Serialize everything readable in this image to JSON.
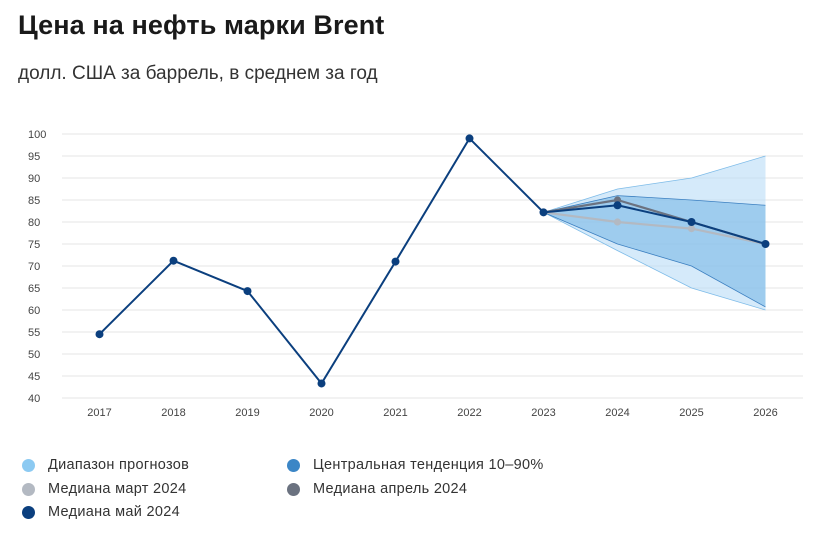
{
  "title": "Цена на нефть марки Brent",
  "subtitle": "долл. США за баррель, в среднем за год",
  "chart_data": {
    "type": "line",
    "ylim": [
      40,
      100
    ],
    "yticks": [
      100,
      95,
      90,
      85,
      80,
      75,
      70,
      65,
      60,
      55,
      50,
      45,
      40
    ],
    "categories": [
      "2017",
      "2018",
      "2019",
      "2020",
      "2021",
      "2022",
      "2023",
      "2024",
      "2025",
      "2026"
    ],
    "grid": true,
    "series": [
      {
        "name": "Медиана май 2024",
        "color": "#0b3f7e",
        "values": [
          54.5,
          71.2,
          64.3,
          43.3,
          71.0,
          99.0,
          82.2,
          83.8,
          80.0,
          75.0
        ]
      },
      {
        "name": "Медиана март 2024",
        "color": "#b3b9c2",
        "values": [
          null,
          null,
          null,
          null,
          null,
          null,
          82.2,
          80.0,
          78.5,
          75.0
        ]
      },
      {
        "name": "Медиана апрель 2024",
        "color": "#6b7280",
        "values": [
          null,
          null,
          null,
          null,
          null,
          null,
          82.2,
          85.0,
          80.0,
          75.0
        ]
      }
    ],
    "bands": [
      {
        "name": "Диапазон прогнозов",
        "color": "#b9dcf7",
        "x": [
          "2023",
          "2024",
          "2025",
          "2026"
        ],
        "low": [
          82.2,
          73.5,
          65.0,
          60.0
        ],
        "high": [
          82.2,
          87.5,
          90.0,
          95.0
        ]
      },
      {
        "name": "Центральная тенденция 10–90%",
        "color": "#7ab8e6",
        "x": [
          "2023",
          "2024",
          "2025",
          "2026"
        ],
        "low": [
          82.2,
          75.0,
          70.0,
          60.7
        ],
        "high": [
          82.2,
          86.0,
          85.0,
          83.8
        ]
      }
    ]
  },
  "legend": [
    {
      "label": "Диапазон прогнозов",
      "color": "#8ccaf2"
    },
    {
      "label": "Центральная тенденция 10–90%",
      "color": "#3b86c6"
    },
    {
      "label": "Медиана март 2024",
      "color": "#b3b9c2"
    },
    {
      "label": "Медиана апрель 2024",
      "color": "#6b7280"
    },
    {
      "label": "Медиана май 2024",
      "color": "#0b3f7e"
    }
  ]
}
